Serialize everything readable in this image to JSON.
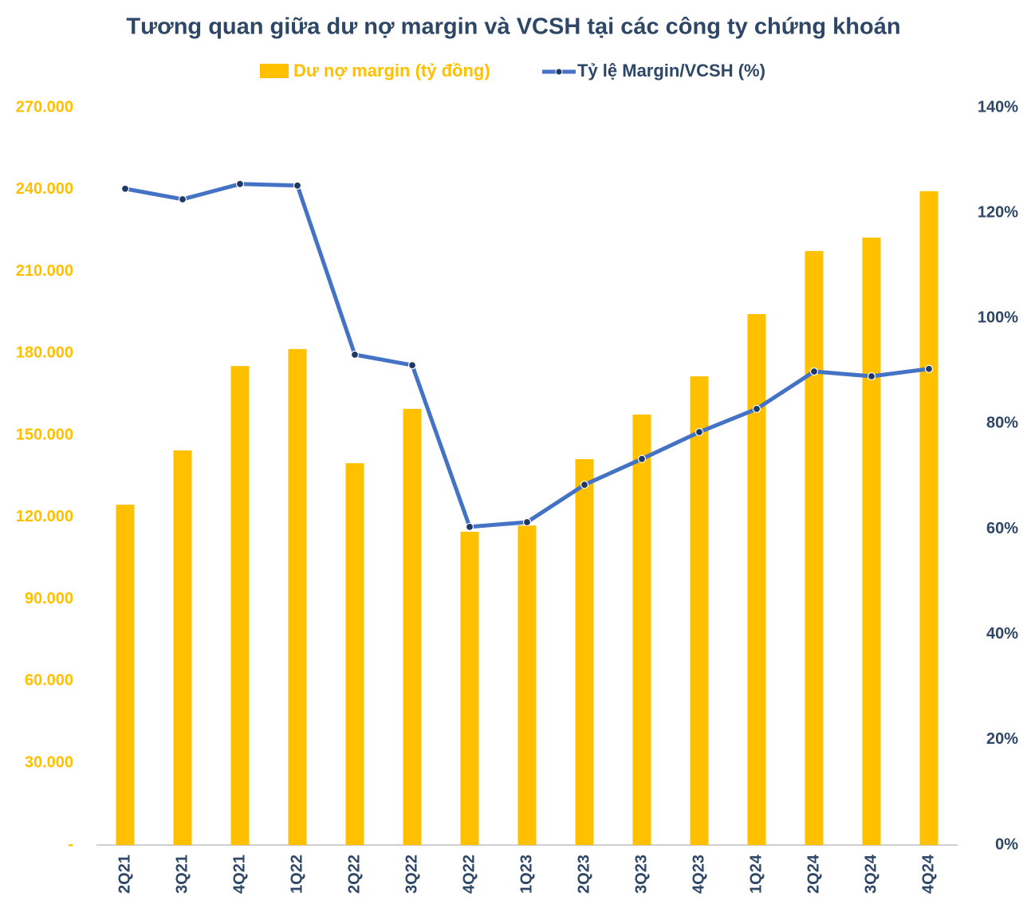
{
  "chart_data": {
    "type": "bar-line",
    "title": "Tương quan giữa dư nợ margin và VCSH tại các công ty chứng khoán",
    "categories": [
      "2Q21",
      "3Q21",
      "4Q21",
      "1Q22",
      "2Q22",
      "3Q22",
      "4Q22",
      "1Q23",
      "2Q23",
      "3Q23",
      "4Q23",
      "1Q24",
      "2Q24",
      "3Q24",
      "4Q24"
    ],
    "series": [
      {
        "name": "Dư nợ margin (tỷ đồng)",
        "type": "bar",
        "color": "#FFC000",
        "values": [
          124600,
          144500,
          175400,
          181600,
          139800,
          159700,
          114700,
          117000,
          141300,
          157600,
          171600,
          194400,
          217500,
          222400,
          239400
        ]
      },
      {
        "name": "Tỷ lệ Margin/VCSH (%)",
        "type": "line",
        "axis": "y2",
        "color": "#4472C4",
        "values": [
          124.6,
          122.6,
          125.5,
          125.2,
          93.1,
          91.1,
          60.4,
          61.3,
          68.4,
          73.3,
          78.4,
          82.8,
          89.9,
          89.0,
          90.4
        ]
      }
    ],
    "ylim": [
      0,
      270000
    ],
    "yticks": [
      {
        "value": 0,
        "label": "-"
      },
      {
        "value": 30000,
        "label": "30.000"
      },
      {
        "value": 60000,
        "label": "60.000"
      },
      {
        "value": 90000,
        "label": "90.000"
      },
      {
        "value": 120000,
        "label": "120.000"
      },
      {
        "value": 150000,
        "label": "150.000"
      },
      {
        "value": 180000,
        "label": "180.000"
      },
      {
        "value": 210000,
        "label": "210.000"
      },
      {
        "value": 240000,
        "label": "240.000"
      },
      {
        "value": 270000,
        "label": "270.000"
      }
    ],
    "y2lim": [
      0,
      140
    ],
    "y2ticks": [
      {
        "value": 0,
        "label": "0%"
      },
      {
        "value": 20,
        "label": "20%"
      },
      {
        "value": 40,
        "label": "40%"
      },
      {
        "value": 60,
        "label": "60%"
      },
      {
        "value": 80,
        "label": "80%"
      },
      {
        "value": 100,
        "label": "100%"
      },
      {
        "value": 120,
        "label": "120%"
      },
      {
        "value": 140,
        "label": "140%"
      }
    ]
  }
}
